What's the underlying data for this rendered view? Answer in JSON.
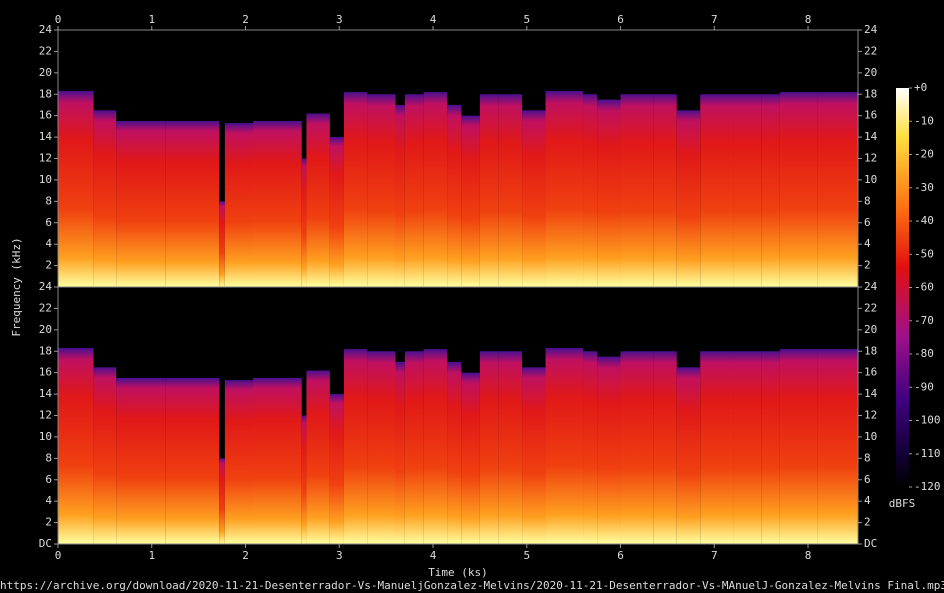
{
  "chart_data": {
    "type": "spectrogram",
    "x_label": "Time (ks)",
    "y_label": "Frequency (kHz)",
    "footer": "https://archive.org/download/2020-11-21-Desenterrador-Vs-ManueljGonzalez-Melvins/2020-11-21-Desenterrador-Vs-MAnuelJ-Gonzalez-Melvins Final.mp3",
    "xlim": [
      0,
      8.533
    ],
    "xticks": [
      0,
      1,
      2,
      3,
      4,
      5,
      6,
      7,
      8
    ],
    "ylim": [
      0,
      24
    ],
    "yticks": [
      {
        "value": 0,
        "label": "DC"
      },
      2,
      4,
      6,
      8,
      10,
      12,
      14,
      16,
      18,
      20,
      22,
      24
    ],
    "bins": [
      0,
      0.38,
      0.62,
      1.15,
      1.72,
      1.78,
      2.08,
      2.6,
      2.65,
      2.9,
      3.05,
      3.3,
      3.6,
      3.7,
      3.9,
      4.15,
      4.3,
      4.5,
      4.7,
      4.95,
      5.2,
      5.6,
      5.75,
      6.0,
      6.35,
      6.6,
      6.85,
      7.2,
      7.5,
      7.7,
      8.1,
      8.533
    ],
    "channels": [
      {
        "values": [
          18.3,
          16.5,
          15.5,
          15.5,
          8,
          15.3,
          15.5,
          12,
          16.2,
          14,
          18.2,
          18,
          17,
          18,
          18.2,
          17,
          16,
          18,
          18,
          16.5,
          18.3,
          18,
          17.5,
          18,
          18,
          16.5,
          18,
          18,
          18,
          18.2,
          18.2
        ]
      },
      {
        "values": [
          18.3,
          16.5,
          15.5,
          15.5,
          8,
          15.3,
          15.5,
          12,
          16.2,
          14,
          18.2,
          18,
          17,
          18,
          18.2,
          17,
          16,
          18,
          18,
          16.5,
          18.3,
          18,
          17.5,
          18,
          18,
          16.5,
          18,
          18,
          18,
          18.2,
          18.2
        ]
      }
    ],
    "colorbar": {
      "label": "dBFS",
      "lim": [
        -120,
        0
      ],
      "ticks": [
        {
          "value": 0,
          "label": "+0"
        },
        -10,
        -20,
        -30,
        -40,
        -50,
        -60,
        -70,
        -80,
        -90,
        -100,
        -110,
        -120
      ]
    }
  }
}
